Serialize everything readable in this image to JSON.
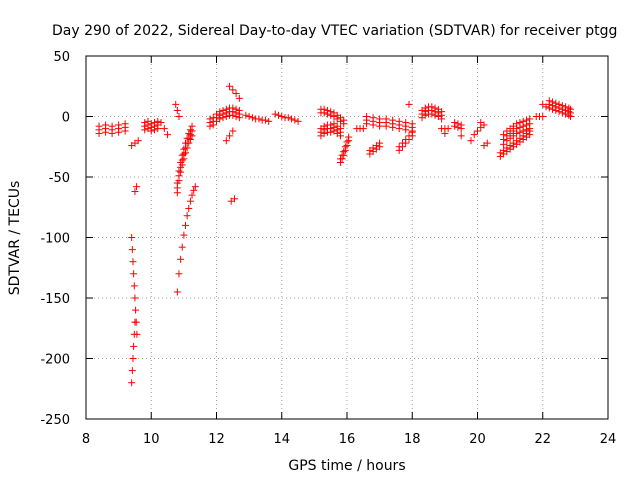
{
  "chart_data": {
    "type": "scatter",
    "title": "Day 290 of 2022, Sidereal Day-to-day VTEC variation (SDTVAR) for receiver ptgg",
    "xlabel": "GPS time / hours",
    "ylabel": "SDTVAR / TECUs",
    "xlim": [
      8,
      24
    ],
    "ylim": [
      -250,
      50
    ],
    "xticks": [
      8,
      10,
      12,
      14,
      16,
      18,
      20,
      22,
      24
    ],
    "yticks": [
      50,
      0,
      -50,
      -100,
      -150,
      -200,
      -250
    ],
    "grid": true,
    "marker": "+",
    "color": "#ff0000",
    "series": [
      {
        "name": "seg-8.4",
        "x": [
          8.4,
          8.6,
          8.8,
          9.0,
          9.2
        ],
        "y": [
          -8,
          -7,
          -8,
          -7,
          -6
        ],
        "repeat_offsets": [
          0,
          -3,
          -6
        ]
      },
      {
        "name": "seg-9.5",
        "x": [
          9.4,
          9.5,
          9.6
        ],
        "y": [
          -24,
          -22,
          -20
        ]
      },
      {
        "name": "seg-9.5b",
        "x": [
          9.5,
          9.55
        ],
        "y": [
          -62,
          -58
        ]
      },
      {
        "name": "drop-a",
        "x": [
          9.4,
          9.42,
          9.44,
          9.46,
          9.48,
          9.5,
          9.52,
          9.54,
          9.56
        ],
        "y": [
          -100,
          -110,
          -120,
          -130,
          -140,
          -150,
          -160,
          -170,
          -180
        ]
      },
      {
        "name": "drop-b",
        "x": [
          9.4,
          9.42,
          9.44,
          9.46,
          9.48,
          9.5
        ],
        "y": [
          -220,
          -210,
          -200,
          -190,
          -180,
          -170
        ]
      },
      {
        "name": "seg-9.8",
        "x": [
          9.8,
          9.9,
          10.0,
          10.1,
          10.2
        ],
        "y": [
          -5,
          -4,
          -6,
          -5,
          -4
        ],
        "repeat_offsets": [
          0,
          -3,
          -6
        ]
      },
      {
        "name": "seg-10.4",
        "x": [
          10.3,
          10.4,
          10.5
        ],
        "y": [
          -5,
          -10,
          -15
        ]
      },
      {
        "name": "seg-10.8",
        "x": [
          10.75,
          10.8,
          10.85
        ],
        "y": [
          10,
          5,
          0
        ]
      },
      {
        "name": "rise-a",
        "x": [
          10.8,
          10.85,
          10.9,
          10.95,
          11.0,
          11.05,
          11.1,
          11.15,
          11.2,
          11.25
        ],
        "y": [
          -55,
          -45,
          -38,
          -32,
          -27,
          -22,
          -18,
          -14,
          -11,
          -8
        ],
        "repeat_offsets": [
          0,
          -4,
          -8
        ]
      },
      {
        "name": "rise-b",
        "x": [
          10.8,
          10.85,
          10.9,
          10.95,
          11.0,
          11.05,
          11.1,
          11.15,
          11.2,
          11.25,
          11.3,
          11.35
        ],
        "y": [
          -145,
          -130,
          -118,
          -108,
          -98,
          -90,
          -82,
          -76,
          -70,
          -65,
          -61,
          -58
        ]
      },
      {
        "name": "seg-11.8",
        "x": [
          11.8,
          11.9,
          12.0,
          12.1,
          12.2,
          12.3,
          12.4,
          12.5,
          12.6,
          12.7
        ],
        "y": [
          -2,
          -1,
          2,
          4,
          5,
          6,
          7,
          7,
          6,
          5
        ],
        "repeat_offsets": [
          0,
          -3,
          -6
        ]
      },
      {
        "name": "seg-12.5",
        "x": [
          12.4,
          12.5,
          12.6,
          12.7
        ],
        "y": [
          25,
          22,
          19,
          15
        ]
      },
      {
        "name": "seg-12.3",
        "x": [
          12.3,
          12.4,
          12.5
        ],
        "y": [
          -20,
          -16,
          -12
        ]
      },
      {
        "name": "seg-12.4",
        "x": [
          12.45,
          12.55
        ],
        "y": [
          -70,
          -68
        ]
      },
      {
        "name": "seg-13",
        "x": [
          12.9,
          13.0,
          13.1,
          13.2,
          13.3,
          13.4,
          13.5,
          13.6
        ],
        "y": [
          1,
          0,
          -1,
          -2,
          -2,
          -3,
          -3,
          -4
        ]
      },
      {
        "name": "seg-13.8",
        "x": [
          13.8,
          13.9,
          14.0,
          14.1,
          14.2,
          14.3,
          14.4,
          14.5
        ],
        "y": [
          2,
          1,
          0,
          -1,
          -1,
          -2,
          -3,
          -4
        ]
      },
      {
        "name": "seg-15.3",
        "x": [
          15.2,
          15.3,
          15.4,
          15.5,
          15.6,
          15.7,
          15.8,
          15.9
        ],
        "y": [
          6,
          6,
          5,
          4,
          3,
          1,
          -1,
          -3
        ],
        "repeat_offsets": [
          0,
          -3
        ]
      },
      {
        "name": "seg-15.6",
        "x": [
          15.2,
          15.3,
          15.4,
          15.5,
          15.6,
          15.7,
          15.8
        ],
        "y": [
          -10,
          -8,
          -7,
          -7,
          -6,
          -8,
          -10
        ],
        "repeat_offsets": [
          0,
          -3,
          -6
        ]
      },
      {
        "name": "seg-15.9",
        "x": [
          15.8,
          15.85,
          15.9,
          15.95,
          16.0,
          16.05
        ],
        "y": [
          -35,
          -32,
          -29,
          -25,
          -21,
          -17
        ],
        "repeat_offsets": [
          0,
          -3
        ]
      },
      {
        "name": "seg-16.3",
        "x": [
          16.3,
          16.4,
          16.5
        ],
        "y": [
          -10,
          -10,
          -10
        ]
      },
      {
        "name": "seg-16.6",
        "x": [
          16.6,
          16.8,
          17.0,
          17.2,
          17.4,
          17.6,
          17.8,
          18.0
        ],
        "y": [
          0,
          -1,
          -2,
          -2,
          -3,
          -4,
          -5,
          -6
        ],
        "repeat_offsets": [
          0,
          -3,
          -6
        ]
      },
      {
        "name": "seg-16.8",
        "x": [
          16.7,
          16.8,
          16.9,
          17.0
        ],
        "y": [
          -28,
          -26,
          -24,
          -22
        ],
        "repeat_offsets": [
          0,
          -3
        ]
      },
      {
        "name": "seg-17.8",
        "x": [
          17.6,
          17.7,
          17.8,
          17.9,
          18.0
        ],
        "y": [
          -25,
          -22,
          -19,
          -16,
          -13
        ],
        "repeat_offsets": [
          0,
          -3
        ]
      },
      {
        "name": "seg-18.4",
        "x": [
          18.3,
          18.4,
          18.5,
          18.6,
          18.7,
          18.8,
          18.9
        ],
        "y": [
          5,
          7,
          8,
          8,
          7,
          6,
          4
        ],
        "repeat_offsets": [
          0,
          -3,
          -6
        ]
      },
      {
        "name": "seg-17.9",
        "x": [
          17.9
        ],
        "y": [
          10
        ]
      },
      {
        "name": "seg-19",
        "x": [
          18.9,
          19.0,
          19.1
        ],
        "y": [
          -10,
          -10,
          -10
        ]
      },
      {
        "name": "seg-19.3",
        "x": [
          19.3,
          19.4,
          19.5
        ],
        "y": [
          -5,
          -6,
          -7
        ],
        "repeat_offsets": [
          0,
          -3
        ]
      },
      {
        "name": "seg-19.0",
        "x": [
          19.0
        ],
        "y": [
          -14
        ]
      },
      {
        "name": "seg-19.5",
        "x": [
          19.5
        ],
        "y": [
          -16
        ]
      },
      {
        "name": "seg-19.9",
        "x": [
          19.8,
          19.9,
          20.0,
          20.1,
          20.2
        ],
        "y": [
          -20,
          -15,
          -12,
          -9,
          -7
        ]
      },
      {
        "name": "seg-20.3",
        "x": [
          20.2,
          20.3
        ],
        "y": [
          -24,
          -22
        ]
      },
      {
        "name": "seg-20.1",
        "x": [
          20.1
        ],
        "y": [
          -5
        ]
      },
      {
        "name": "seg-20.8a",
        "x": [
          20.8,
          20.9,
          21.0,
          21.1,
          21.2,
          21.3,
          21.4,
          21.5,
          21.6
        ],
        "y": [
          -15,
          -12,
          -10,
          -8,
          -6,
          -5,
          -4,
          -3,
          -2
        ],
        "repeat_offsets": [
          0,
          -4,
          -8
        ]
      },
      {
        "name": "seg-20.8b",
        "x": [
          20.7,
          20.8,
          20.9,
          21.0,
          21.1,
          21.2,
          21.3,
          21.4,
          21.5,
          21.6
        ],
        "y": [
          -30,
          -28,
          -26,
          -24,
          -22,
          -20,
          -18,
          -16,
          -14,
          -12
        ],
        "repeat_offsets": [
          0,
          -3
        ]
      },
      {
        "name": "seg-21.8",
        "x": [
          21.8,
          21.9,
          22.0
        ],
        "y": [
          0,
          0,
          0
        ]
      },
      {
        "name": "seg-22.5",
        "x": [
          22.2,
          22.3,
          22.4,
          22.5,
          22.6,
          22.7,
          22.8,
          22.85
        ],
        "y": [
          13,
          12,
          11,
          10,
          9,
          8,
          7,
          6
        ],
        "repeat_offsets": [
          0,
          -3,
          -6
        ]
      },
      {
        "name": "seg-22.0",
        "x": [
          22.0,
          22.1
        ],
        "y": [
          10,
          8
        ]
      }
    ]
  }
}
